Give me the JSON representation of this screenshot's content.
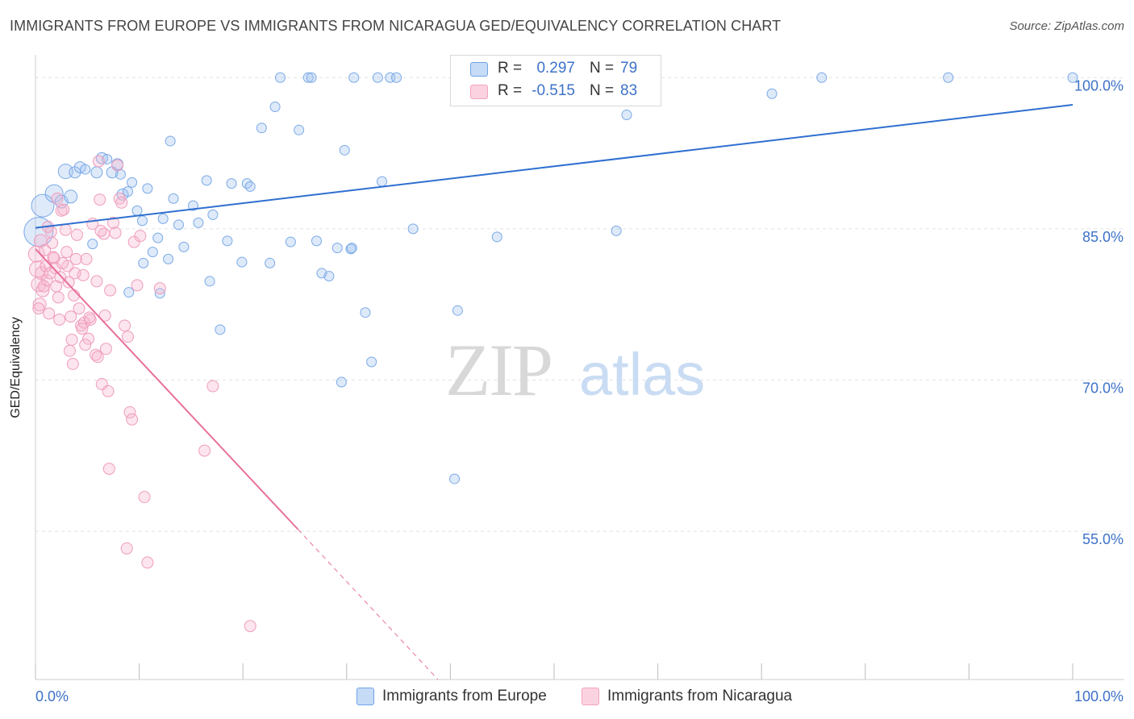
{
  "title": "IMMIGRANTS FROM EUROPE VS IMMIGRANTS FROM NICARAGUA GED/EQUIVALENCY CORRELATION CHART",
  "source": "Source: ZipAtlas.com",
  "watermark": {
    "zip": "ZIP",
    "atlas": "atlas"
  },
  "stats": [
    {
      "r_label": "R =",
      "r_value": "0.297",
      "n_label": "N =",
      "n_value": "79",
      "color": "#6fa3e8"
    },
    {
      "r_label": "R =",
      "r_value": "-0.515",
      "n_label": "N =",
      "n_value": "83",
      "color": "#f2a2bd"
    }
  ],
  "legend": [
    {
      "label": "Immigrants from Europe",
      "color": "#6fa3e8"
    },
    {
      "label": "Immigrants from Nicaragua",
      "color": "#f2a2bd"
    }
  ],
  "colors": {
    "europe": "#6fa3e8",
    "nicaragua": "#f08cb0",
    "europe_line": "#2f6fd0",
    "nicaragua_line": "#e8709a",
    "axis_text": "#3d72c8"
  },
  "chart_data": {
    "type": "scatter",
    "title": "IMMIGRANTS FROM EUROPE VS IMMIGRANTS FROM NICARAGUA GED/EQUIVALENCY CORRELATION CHART",
    "xlabel": "",
    "ylabel": "GED/Equivalency",
    "xlim": [
      0,
      100
    ],
    "ylim": [
      40.3,
      101.3
    ],
    "x_tick_labels": [
      "0.0%",
      "100.0%"
    ],
    "y_ticks": [
      55,
      70,
      85,
      100
    ],
    "y_tick_labels": [
      "55.0%",
      "70.0%",
      "85.0%",
      "100.0%"
    ],
    "grid": true,
    "legend_position": "bottom",
    "series": [
      {
        "name": "Immigrants from Europe",
        "points": [
          [
            0.3,
            84.7,
            18
          ],
          [
            0.7,
            87.3,
            14
          ],
          [
            1.8,
            88.5,
            11
          ],
          [
            2.5,
            87.7,
            8
          ],
          [
            3.4,
            88.2,
            8
          ],
          [
            2.9,
            90.7,
            9
          ],
          [
            3.8,
            90.6,
            7
          ],
          [
            4.3,
            91.1,
            7
          ],
          [
            4.8,
            90.9,
            6
          ],
          [
            5.9,
            90.6,
            7
          ],
          [
            6.4,
            92.0,
            7
          ],
          [
            6.9,
            91.9,
            6
          ],
          [
            7.4,
            90.6,
            7
          ],
          [
            7.9,
            91.4,
            7
          ],
          [
            8.4,
            88.4,
            7
          ],
          [
            8.9,
            88.7,
            6
          ],
          [
            9.3,
            89.6,
            6
          ],
          [
            9.8,
            86.8,
            6
          ],
          [
            10.3,
            85.8,
            6
          ],
          [
            10.8,
            89.0,
            6
          ],
          [
            11.3,
            82.7,
            6
          ],
          [
            11.8,
            84.1,
            6
          ],
          [
            12.3,
            86.0,
            6
          ],
          [
            12.8,
            82.0,
            6
          ],
          [
            13.3,
            88.0,
            6
          ],
          [
            13.8,
            85.4,
            6
          ],
          [
            14.3,
            83.2,
            6
          ],
          [
            15.2,
            87.3,
            6
          ],
          [
            15.7,
            85.6,
            6
          ],
          [
            16.5,
            89.8,
            6
          ],
          [
            17.1,
            86.4,
            6
          ],
          [
            17.8,
            75.0,
            6
          ],
          [
            18.5,
            83.8,
            6
          ],
          [
            19.9,
            81.7,
            6
          ],
          [
            20.4,
            89.5,
            6
          ],
          [
            20.7,
            89.2,
            6
          ],
          [
            21.8,
            95.0,
            6
          ],
          [
            22.6,
            81.6,
            6
          ],
          [
            23.1,
            97.1,
            6
          ],
          [
            23.6,
            100.0,
            6
          ],
          [
            24.6,
            83.7,
            6
          ],
          [
            25.4,
            94.8,
            6
          ],
          [
            26.3,
            100.0,
            6
          ],
          [
            26.6,
            100.0,
            6
          ],
          [
            27.1,
            83.8,
            6
          ],
          [
            27.6,
            80.6,
            6
          ],
          [
            28.3,
            80.3,
            6
          ],
          [
            29.1,
            83.1,
            6
          ],
          [
            29.5,
            69.8,
            6
          ],
          [
            29.8,
            92.8,
            6
          ],
          [
            30.4,
            83.0,
            6
          ],
          [
            30.5,
            83.1,
            6
          ],
          [
            30.7,
            100.0,
            6
          ],
          [
            31.8,
            76.7,
            6
          ],
          [
            32.4,
            71.8,
            6
          ],
          [
            33.0,
            100.0,
            6
          ],
          [
            33.4,
            89.7,
            6
          ],
          [
            34.2,
            100.0,
            6
          ],
          [
            34.8,
            100.0,
            6
          ],
          [
            36.4,
            85.0,
            6
          ],
          [
            40.4,
            60.2,
            6
          ],
          [
            40.7,
            76.9,
            6
          ],
          [
            44.5,
            84.2,
            6
          ],
          [
            47.3,
            99.3,
            6
          ],
          [
            51.8,
            100.0,
            6
          ],
          [
            56.0,
            84.8,
            6
          ],
          [
            57.0,
            96.3,
            6
          ],
          [
            71.0,
            98.4,
            6
          ],
          [
            75.8,
            100.0,
            6
          ],
          [
            88.0,
            100.0,
            6
          ],
          [
            100.0,
            100.0,
            6
          ],
          [
            13.0,
            93.7,
            6
          ],
          [
            18.9,
            89.5,
            6
          ],
          [
            8.2,
            90.4,
            6
          ],
          [
            9.0,
            78.7,
            6
          ],
          [
            10.4,
            81.6,
            6
          ],
          [
            5.5,
            83.5,
            6
          ],
          [
            12.0,
            78.6,
            6
          ],
          [
            16.8,
            79.8,
            6
          ]
        ]
      },
      {
        "name": "Immigrants from Nicaragua",
        "points": [
          [
            0.1,
            82.5,
            10
          ],
          [
            0.2,
            81.0,
            10
          ],
          [
            0.3,
            79.5,
            9
          ],
          [
            0.4,
            77.5,
            8
          ],
          [
            0.5,
            83.8,
            8
          ],
          [
            0.6,
            80.6,
            8
          ],
          [
            0.7,
            78.9,
            8
          ],
          [
            0.9,
            82.9,
            7
          ],
          [
            1.0,
            81.3,
            7
          ],
          [
            1.1,
            79.9,
            7
          ],
          [
            1.3,
            76.6,
            7
          ],
          [
            1.5,
            84.7,
            7
          ],
          [
            1.6,
            83.6,
            7
          ],
          [
            1.7,
            82.2,
            7
          ],
          [
            1.9,
            81.1,
            7
          ],
          [
            2.0,
            79.3,
            7
          ],
          [
            2.2,
            78.2,
            7
          ],
          [
            2.3,
            76.0,
            7
          ],
          [
            2.5,
            86.8,
            7
          ],
          [
            2.7,
            86.9,
            7
          ],
          [
            2.9,
            84.9,
            7
          ],
          [
            3.0,
            82.7,
            7
          ],
          [
            3.1,
            81.3,
            7
          ],
          [
            3.2,
            79.7,
            7
          ],
          [
            3.3,
            72.9,
            7
          ],
          [
            3.5,
            74.0,
            7
          ],
          [
            3.6,
            71.6,
            7
          ],
          [
            3.7,
            78.4,
            7
          ],
          [
            3.9,
            82.0,
            7
          ],
          [
            4.0,
            84.4,
            7
          ],
          [
            4.2,
            77.1,
            7
          ],
          [
            4.4,
            75.4,
            7
          ],
          [
            4.6,
            80.4,
            7
          ],
          [
            4.7,
            75.7,
            7
          ],
          [
            4.9,
            82.0,
            7
          ],
          [
            5.1,
            74.1,
            7
          ],
          [
            5.3,
            76.0,
            7
          ],
          [
            5.5,
            85.5,
            7
          ],
          [
            5.8,
            72.5,
            7
          ],
          [
            6.0,
            72.3,
            7
          ],
          [
            6.1,
            91.7,
            7
          ],
          [
            6.2,
            87.9,
            7
          ],
          [
            6.4,
            69.6,
            7
          ],
          [
            6.6,
            84.5,
            7
          ],
          [
            6.8,
            73.1,
            7
          ],
          [
            7.0,
            68.9,
            7
          ],
          [
            7.1,
            61.2,
            7
          ],
          [
            7.2,
            78.9,
            7
          ],
          [
            7.5,
            85.6,
            7
          ],
          [
            7.7,
            84.6,
            7
          ],
          [
            7.9,
            91.3,
            7
          ],
          [
            8.1,
            88.0,
            7
          ],
          [
            8.3,
            87.6,
            7
          ],
          [
            8.6,
            75.4,
            7
          ],
          [
            8.8,
            53.3,
            7
          ],
          [
            8.9,
            74.3,
            7
          ],
          [
            9.1,
            66.8,
            7
          ],
          [
            9.3,
            66.1,
            7
          ],
          [
            9.5,
            83.7,
            7
          ],
          [
            9.8,
            79.4,
            7
          ],
          [
            10.1,
            84.3,
            7
          ],
          [
            10.5,
            58.4,
            7
          ],
          [
            10.8,
            51.9,
            7
          ],
          [
            12.0,
            79.1,
            7
          ],
          [
            16.3,
            63.0,
            7
          ],
          [
            17.1,
            69.4,
            7
          ],
          [
            20.7,
            45.6,
            7
          ],
          [
            1.2,
            85.2,
            7
          ],
          [
            2.1,
            88.0,
            7
          ],
          [
            3.4,
            76.3,
            7
          ],
          [
            4.8,
            73.5,
            7
          ],
          [
            5.2,
            76.2,
            7
          ],
          [
            5.9,
            79.8,
            7
          ],
          [
            6.3,
            84.8,
            7
          ],
          [
            6.7,
            76.4,
            7
          ],
          [
            0.8,
            79.3,
            7
          ],
          [
            1.4,
            80.6,
            7
          ],
          [
            2.6,
            81.6,
            7
          ],
          [
            3.8,
            80.6,
            7
          ],
          [
            4.5,
            75.1,
            7
          ],
          [
            0.3,
            77.1,
            7
          ],
          [
            1.8,
            82.1,
            7
          ],
          [
            2.4,
            80.2,
            7
          ]
        ]
      }
    ],
    "trendlines": [
      {
        "series": "Immigrants from Europe",
        "x": [
          0,
          100
        ],
        "y": [
          85.1,
          97.3
        ]
      },
      {
        "series": "Immigrants from Nicaragua",
        "x": [
          0,
          25.3
        ],
        "y": [
          83.0,
          55.2
        ]
      },
      {
        "series": "Immigrants from Nicaragua",
        "x": [
          25.3,
          38.8
        ],
        "y": [
          55.2,
          40.3
        ],
        "dashed": true
      }
    ]
  }
}
